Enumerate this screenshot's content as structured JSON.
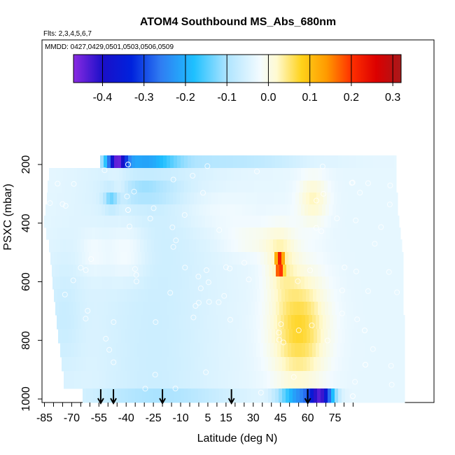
{
  "chart_data": {
    "type": "heatmap",
    "title": "ATOM4 Southbound MS_Abs_680nm",
    "subtitle_flights": "Flts: 2,3,4,5,6,7",
    "subtitle_dates": "MMDD: 0427,0429,0501,0503,0506,0509",
    "xlabel": "Latitude (deg N)",
    "ylabel": "PSXC (mbar)",
    "xlim": [
      -87,
      90
    ],
    "ylim": [
      1010,
      100
    ],
    "y_reversed": true,
    "xticks": [
      -85,
      -70,
      -55,
      -40,
      -25,
      -10,
      5,
      15,
      30,
      45,
      60,
      75
    ],
    "xtick_labels": [
      "-85",
      "-70",
      "-55",
      "-40",
      "-25",
      "-10",
      "5",
      "15",
      "30",
      "45",
      "60",
      "75"
    ],
    "xminor_step": 5,
    "yticks": [
      200,
      400,
      600,
      800,
      1000
    ],
    "ytick_labels": [
      "200",
      "400",
      "600",
      "800",
      "1000"
    ],
    "colorbar": {
      "range": [
        -0.47,
        0.32
      ],
      "ticks": [
        -0.4,
        -0.3,
        -0.2,
        -0.1,
        0.0,
        0.1,
        0.2,
        0.3
      ],
      "tick_labels": [
        "-0.4",
        "-0.3",
        "-0.2",
        "-0.1",
        "0.0",
        "0.1",
        "0.2",
        "0.3"
      ],
      "stops": [
        {
          "v": -0.47,
          "c": "#8a2be2"
        },
        {
          "v": -0.4,
          "c": "#1a0fc8"
        },
        {
          "v": -0.33,
          "c": "#0022dd"
        },
        {
          "v": -0.26,
          "c": "#2f7cf2"
        },
        {
          "v": -0.18,
          "c": "#1ec0ff"
        },
        {
          "v": -0.1,
          "c": "#aee4ff"
        },
        {
          "v": -0.02,
          "c": "#f3fbff"
        },
        {
          "v": 0.02,
          "c": "#fffad0"
        },
        {
          "v": 0.08,
          "c": "#ffd21a"
        },
        {
          "v": 0.14,
          "c": "#ff9a00"
        },
        {
          "v": 0.2,
          "c": "#ff3000"
        },
        {
          "v": 0.26,
          "c": "#dc0000"
        },
        {
          "v": 0.32,
          "c": "#a8181a"
        }
      ]
    },
    "profile_latitudes": [
      -54,
      -47,
      -20,
      18,
      60
    ],
    "grid": false
  }
}
